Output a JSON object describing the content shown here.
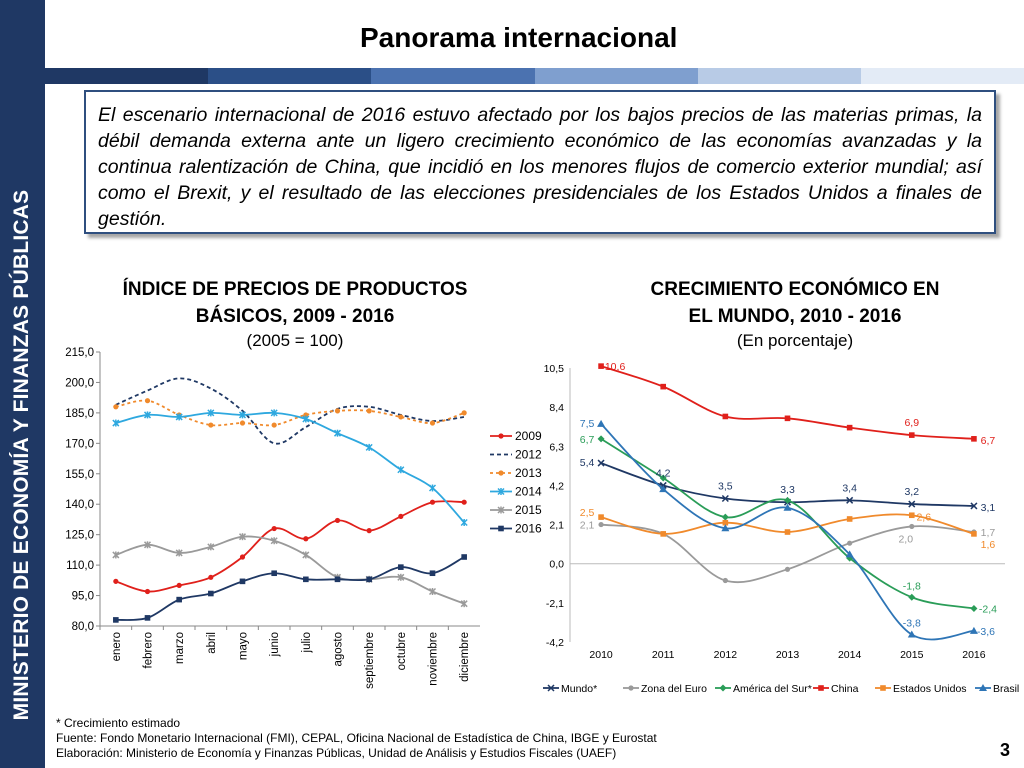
{
  "sidebar": {
    "text": "MINISTERIO DE ECONOMÍA Y FINANZAS PÚBLICAS"
  },
  "page": {
    "title": "Panorama internacional",
    "intro": "El escenario internacional de 2016 estuvo afectado por los bajos precios de las materias primas, la débil demanda externa ante un ligero crecimiento económico de las economías avanzadas y la continua ralentización de China, que incidió en los menores flujos de comercio exterior mundial; así como el Brexit, y el resultado de las elecciones presidenciales de los Estados Unidos a finales de gestión.",
    "page_number": "3"
  },
  "colors": {
    "sidebar": "#1f3864",
    "title_bar": [
      "#1f3864",
      "#2b4f87",
      "#4b72b0",
      "#7f9fcf",
      "#b8cbe6",
      "#e3ebf6"
    ]
  },
  "footer": {
    "note": "* Crecimiento estimado",
    "source": "Fuente: Fondo Monetario Internacional (FMI), CEPAL, Oficina Nacional de Estadística de China, IBGE y Eurostat",
    "elaboration": "Elaboración: Ministerio de Economía y Finanzas Públicas, Unidad de Análisis y Estudios Fiscales (UAEF)"
  },
  "chart_data": [
    {
      "type": "line",
      "title_line1": "ÍNDICE DE PRECIOS DE PRODUCTOS",
      "title_line2": "BÁSICOS, 2009 - 2016",
      "subtitle": "(2005 = 100)",
      "ylim": [
        80,
        215
      ],
      "yticks": [
        "80,0",
        "95,0",
        "110,0",
        "125,0",
        "140,0",
        "155,0",
        "170,0",
        "185,0",
        "200,0",
        "215,0"
      ],
      "categories": [
        "enero",
        "febrero",
        "marzo",
        "abril",
        "mayo",
        "junio",
        "julio",
        "agosto",
        "septiembre",
        "octubre",
        "noviembre",
        "diciembre"
      ],
      "legend_position": "right",
      "series": [
        {
          "name": "2009",
          "color": "#e0201b",
          "dash": "",
          "marker": "circle",
          "values": [
            102,
            97,
            100,
            104,
            114,
            128,
            123,
            132,
            127,
            134,
            141,
            141
          ]
        },
        {
          "name": "2012",
          "color": "#1f3864",
          "dash": "4,3",
          "marker": "none",
          "values": [
            189,
            196,
            202,
            197,
            186,
            170,
            178,
            187,
            188,
            184,
            181,
            183
          ]
        },
        {
          "name": "2013",
          "color": "#f08a2c",
          "dash": "3,3",
          "marker": "circle",
          "values": [
            188,
            191,
            184,
            179,
            180,
            179,
            184,
            186,
            186,
            183,
            180,
            185
          ]
        },
        {
          "name": "2014",
          "color": "#2ea8df",
          "dash": "",
          "marker": "star",
          "values": [
            180,
            184,
            183,
            185,
            184,
            185,
            182,
            175,
            168,
            157,
            148,
            131
          ]
        },
        {
          "name": "2015",
          "color": "#9a9a9a",
          "dash": "",
          "marker": "star",
          "values": [
            115,
            120,
            116,
            119,
            124,
            122,
            115,
            104,
            103,
            104,
            97,
            91
          ]
        },
        {
          "name": "2016",
          "color": "#1f3864",
          "dash": "",
          "marker": "square",
          "values": [
            83,
            84,
            93,
            96,
            102,
            106,
            103,
            103,
            103,
            109,
            106,
            114
          ]
        }
      ]
    },
    {
      "type": "line",
      "title_line1": "CRECIMIENTO ECONÓMICO EN",
      "title_line2": "EL MUNDO, 2010 - 2016",
      "subtitle": "(En porcentaje)",
      "ylim": [
        -4.2,
        10.5
      ],
      "yticks": [
        "-4,2",
        "-2,1",
        "0,0",
        "2,1",
        "4,2",
        "6,3",
        "8,4",
        "10,5"
      ],
      "categories": [
        "2010",
        "2011",
        "2012",
        "2013",
        "2014",
        "2015",
        "2016"
      ],
      "legend_position": "bottom",
      "series": [
        {
          "name": "Mundo*",
          "color": "#1f3864",
          "marker": "x",
          "values": [
            5.4,
            4.2,
            3.5,
            3.3,
            3.4,
            3.2,
            3.1
          ]
        },
        {
          "name": "Zona del Euro",
          "color": "#9a9a9a",
          "marker": "circle",
          "values": [
            2.1,
            1.6,
            -0.9,
            -0.3,
            1.1,
            2.0,
            1.7
          ]
        },
        {
          "name": "América del Sur*",
          "color": "#2a9d58",
          "marker": "diamond",
          "values": [
            6.7,
            4.6,
            2.5,
            3.4,
            0.3,
            -1.8,
            -2.4
          ]
        },
        {
          "name": "China",
          "color": "#e0201b",
          "marker": "square",
          "values": [
            10.6,
            9.5,
            7.9,
            7.8,
            7.3,
            6.9,
            6.7
          ]
        },
        {
          "name": "Estados Unidos",
          "color": "#f08a2c",
          "marker": "square",
          "values": [
            2.5,
            1.6,
            2.2,
            1.7,
            2.4,
            2.6,
            1.6
          ]
        },
        {
          "name": "Brasil",
          "color": "#2e75b6",
          "marker": "triangle",
          "values": [
            7.5,
            4.0,
            1.9,
            3.0,
            0.5,
            -3.8,
            -3.6
          ]
        }
      ],
      "data_labels": [
        {
          "text": "10,6",
          "series": "China",
          "index": 0
        },
        {
          "text": "6,9",
          "series": "China",
          "index": 5
        },
        {
          "text": "6,7",
          "series": "China",
          "index": 6
        },
        {
          "text": "7,5",
          "series": "Brasil",
          "index": 0
        },
        {
          "text": "6,7",
          "series": "América del Sur*",
          "index": 0
        },
        {
          "text": "5,4",
          "series": "Mundo*",
          "index": 0
        },
        {
          "text": "4,2",
          "series": "Mundo*",
          "index": 1
        },
        {
          "text": "3,5",
          "series": "Mundo*",
          "index": 2
        },
        {
          "text": "3,3",
          "series": "Mundo*",
          "index": 3
        },
        {
          "text": "3,4",
          "series": "Mundo*",
          "index": 4
        },
        {
          "text": "3,2",
          "series": "Mundo*",
          "index": 5
        },
        {
          "text": "3,1",
          "series": "Mundo*",
          "index": 6
        },
        {
          "text": "2,5",
          "series": "Estados Unidos",
          "index": 0
        },
        {
          "text": "2,1",
          "series": "Zona del Euro",
          "index": 0
        },
        {
          "text": "2,6",
          "series": "Estados Unidos",
          "index": 5
        },
        {
          "text": "2,0",
          "series": "Zona del Euro",
          "index": 5
        },
        {
          "text": "1,7",
          "series": "Zona del Euro",
          "index": 6
        },
        {
          "text": "1,6",
          "series": "Estados Unidos",
          "index": 6
        },
        {
          "text": "-1,8",
          "series": "América del Sur*",
          "index": 5
        },
        {
          "text": "-2,4",
          "series": "América del Sur*",
          "index": 6
        },
        {
          "text": "-3,8",
          "series": "Brasil",
          "index": 5
        },
        {
          "text": "-3,6",
          "series": "Brasil",
          "index": 6
        }
      ]
    }
  ]
}
